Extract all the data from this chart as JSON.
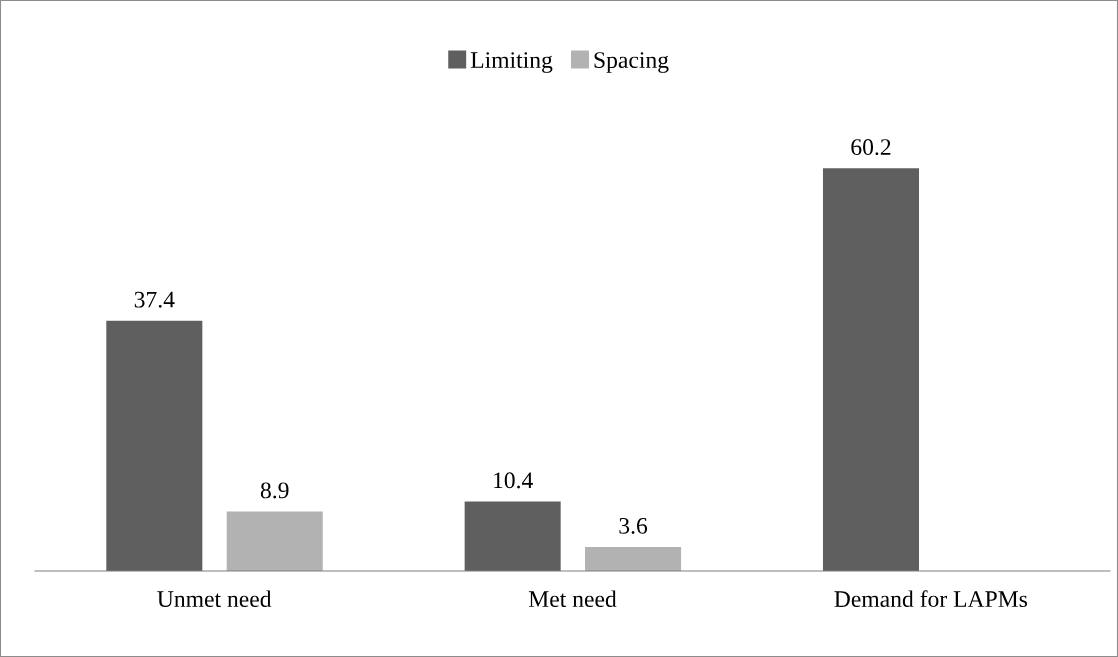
{
  "chart_data": {
    "type": "bar",
    "categories": [
      "Unmet need",
      "Met need",
      "Demand for LAPMs"
    ],
    "series": [
      {
        "name": "Limiting",
        "color": "#5f5f5f",
        "values": [
          37.4,
          10.4,
          60.2
        ]
      },
      {
        "name": "Spacing",
        "color": "#b2b2b2",
        "values": [
          8.9,
          3.6,
          null
        ]
      }
    ],
    "data_labels": true,
    "legend": "top",
    "grid": false
  }
}
